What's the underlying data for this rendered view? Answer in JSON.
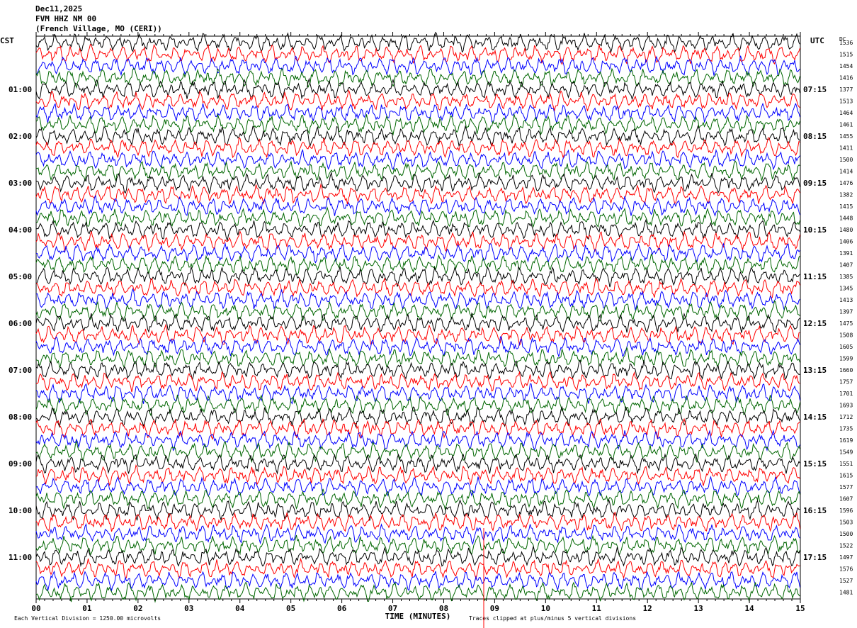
{
  "header": {
    "date": "Dec11,2025",
    "channel": "FVM HHZ NM 00",
    "station": "(French Village, MO (CERI))"
  },
  "left_axis": {
    "title": "CST",
    "labels": [
      "01:00",
      "02:00",
      "03:00",
      "04:00",
      "05:00",
      "06:00",
      "07:00",
      "08:00",
      "09:00",
      "10:00",
      "11:00"
    ]
  },
  "right_axis": {
    "title": "UTC",
    "labels": [
      "07:15",
      "08:15",
      "09:15",
      "10:15",
      "11:15",
      "12:15",
      "13:15",
      "14:15",
      "15:15",
      "16:15",
      "17:15"
    ]
  },
  "dc": {
    "title": "DC",
    "values": [
      1536,
      1515,
      1454,
      1416,
      1377,
      1513,
      1464,
      1461,
      1455,
      1411,
      1500,
      1414,
      1476,
      1382,
      1415,
      1448,
      1480,
      1406,
      1391,
      1407,
      1385,
      1345,
      1413,
      1397,
      1475,
      1508,
      1605,
      1599,
      1660,
      1757,
      1701,
      1693,
      1712,
      1735,
      1619,
      1549,
      1551,
      1615,
      1577,
      1607,
      1596,
      1503,
      1500,
      1522,
      1497,
      1576,
      1527,
      1481
    ]
  },
  "x_axis": {
    "title": "TIME (MINUTES)",
    "ticks": [
      "00",
      "01",
      "02",
      "03",
      "04",
      "05",
      "06",
      "07",
      "08",
      "09",
      "10",
      "11",
      "12",
      "13",
      "14",
      "15"
    ]
  },
  "footer": {
    "scale": "Each Vertical Division = 1250.00 microvolts",
    "clip": "Traces clipped at plus/minus 5 vertical divisions"
  }
}
